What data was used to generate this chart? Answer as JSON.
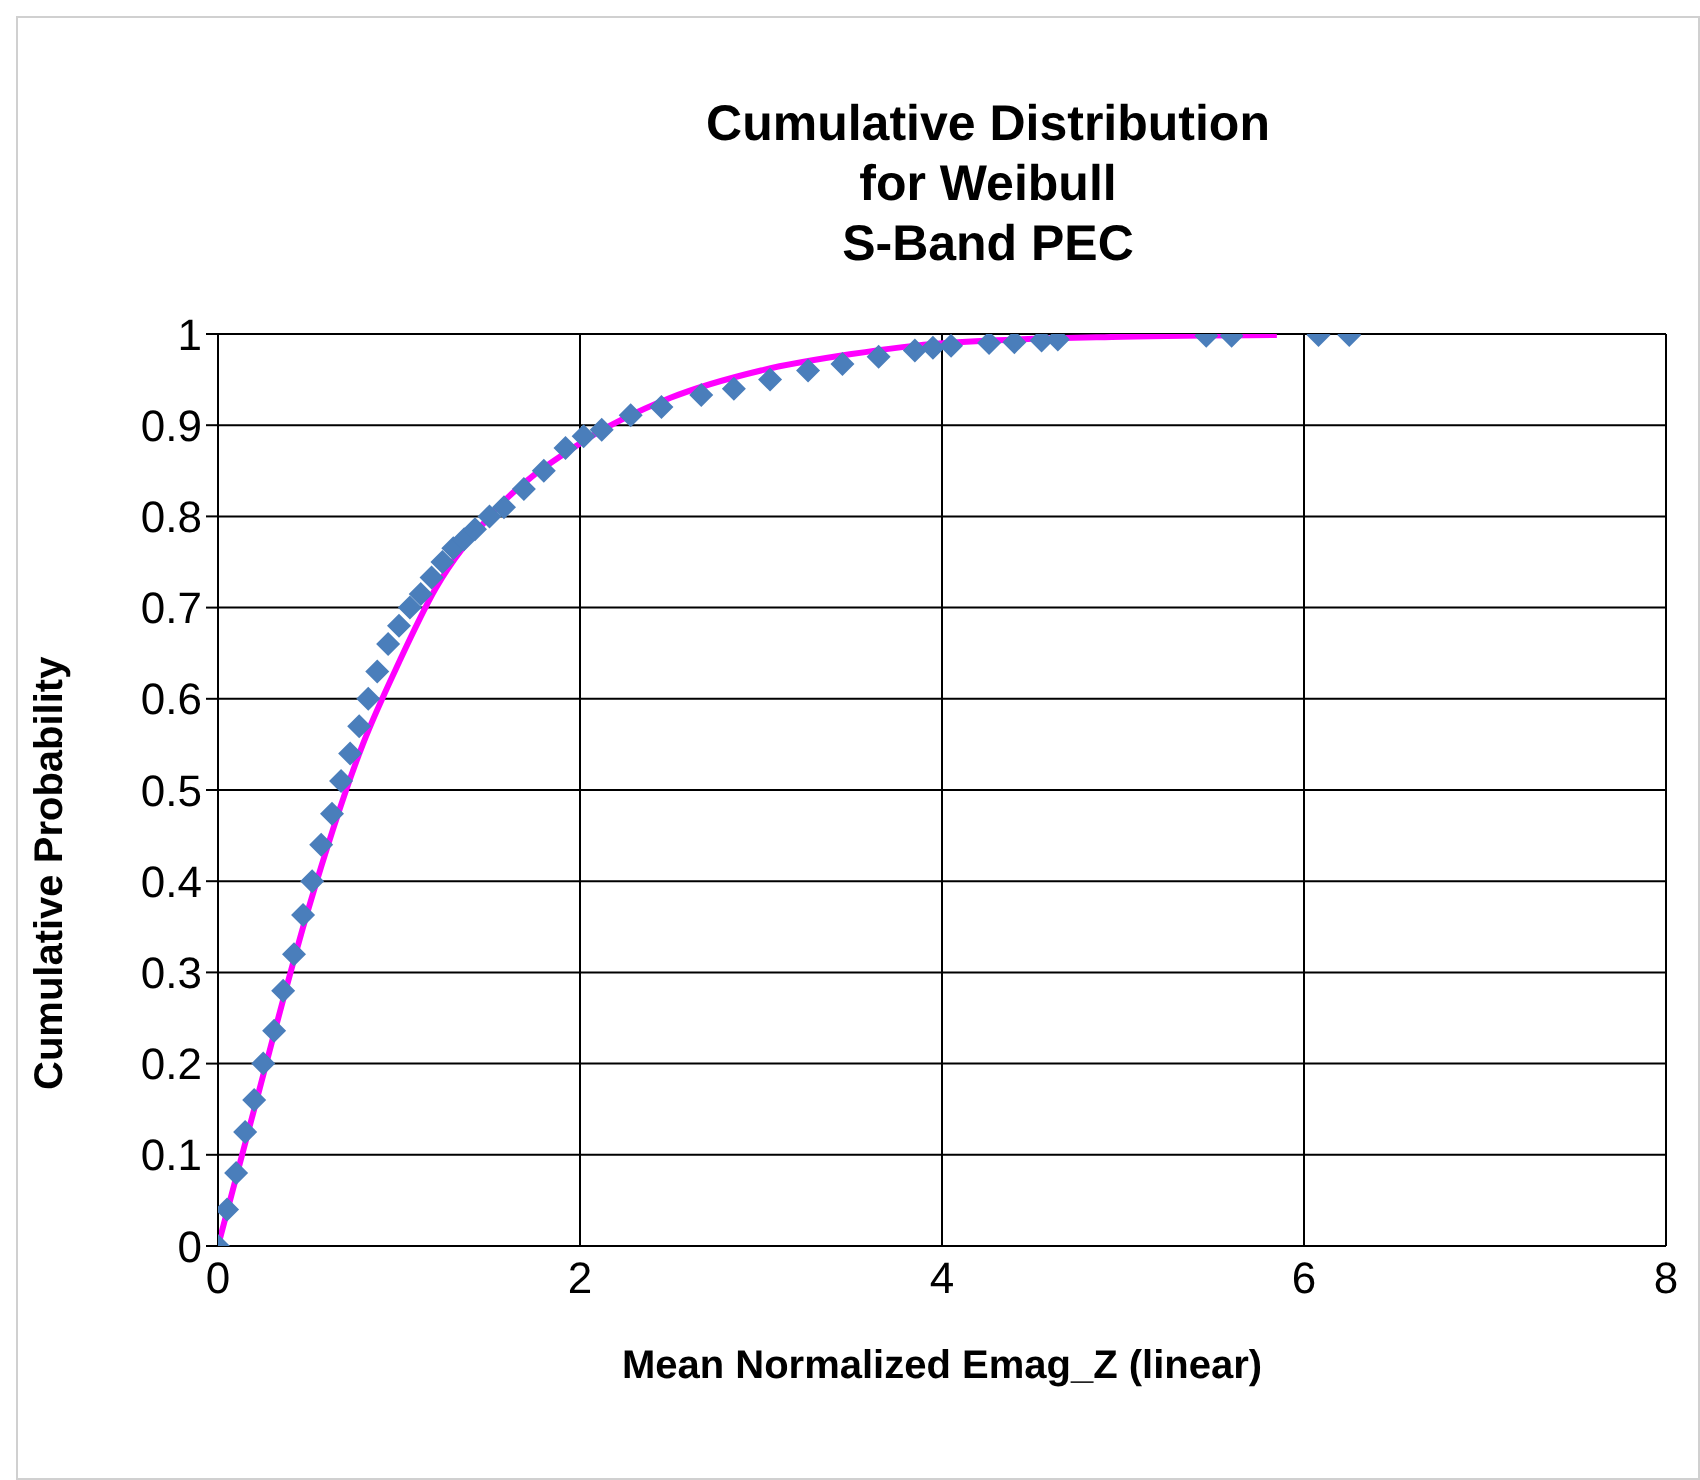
{
  "chart_data": {
    "type": "scatter",
    "title": "Cumulative Distribution\nfor Weibull\nS-Band PEC",
    "xlabel": "Mean Normalized Emag_Z (linear)",
    "ylabel": "Cumulative Probability",
    "xlim": [
      0,
      8
    ],
    "xticks": [
      0,
      2,
      4,
      6,
      8
    ],
    "ylim": [
      0,
      1
    ],
    "yticks": [
      0,
      0.1,
      0.2,
      0.3,
      0.4,
      0.5,
      0.6,
      0.7,
      0.8,
      0.9,
      1
    ],
    "grid": true,
    "marker": "diamond",
    "series": [
      {
        "type": "line",
        "color": "#ff00ff",
        "marker": "none",
        "x": [
          0,
          0.2,
          0.5,
          0.8,
          1,
          1.2,
          1.5,
          2,
          2.5,
          3,
          3.5,
          4,
          5,
          5.85
        ],
        "values": [
          0,
          0.15,
          0.37,
          0.55,
          0.64,
          0.72,
          0.8,
          0.88,
          0.93,
          0.96,
          0.978,
          0.99,
          0.997,
          0.999
        ]
      },
      {
        "color": "#4a7ebb",
        "x": [
          0,
          0.05,
          0.1,
          0.15,
          0.2,
          0.25,
          0.31,
          0.36,
          0.42,
          0.47,
          0.52,
          0.57,
          0.63,
          0.68,
          0.73,
          0.78,
          0.83,
          0.88,
          0.94,
          1,
          1.06,
          1.12,
          1.18,
          1.24,
          1.3,
          1.36,
          1.42,
          1.5,
          1.58,
          1.69,
          1.8,
          1.92,
          2.02,
          2.12,
          2.28,
          2.45,
          2.67,
          2.85,
          3.05,
          3.26,
          3.45,
          3.65,
          3.85,
          3.95,
          4.05,
          4.26,
          4.4,
          4.55,
          4.64,
          5.46,
          5.6,
          6.08,
          6.25
        ],
        "values": [
          0,
          0.04,
          0.08,
          0.125,
          0.16,
          0.2,
          0.236,
          0.28,
          0.32,
          0.363,
          0.4,
          0.44,
          0.474,
          0.51,
          0.54,
          0.57,
          0.6,
          0.63,
          0.66,
          0.68,
          0.7,
          0.715,
          0.733,
          0.75,
          0.765,
          0.775,
          0.786,
          0.8,
          0.81,
          0.83,
          0.85,
          0.875,
          0.888,
          0.895,
          0.911,
          0.92,
          0.933,
          0.94,
          0.95,
          0.96,
          0.967,
          0.975,
          0.982,
          0.985,
          0.987,
          0.99,
          0.991,
          0.993,
          0.994,
          0.998,
          0.998,
          0.999,
          0.999
        ]
      }
    ]
  }
}
